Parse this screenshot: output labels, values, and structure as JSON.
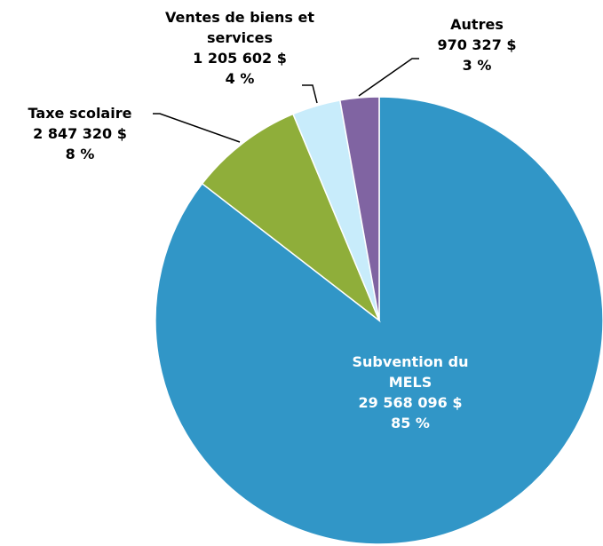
{
  "chart_data": {
    "type": "pie",
    "categories": [
      "Subvention du MELS",
      "Taxe scolaire",
      "Ventes de biens et services",
      "Autres"
    ],
    "values": [
      29568096,
      2847320,
      1205602,
      970327
    ],
    "value_labels": [
      "29 568 096 $",
      "2 847 320 $",
      "1 205 602 $",
      "970 327 $"
    ],
    "percents": [
      85,
      8,
      4,
      3
    ],
    "percent_labels": [
      "85 %",
      "8 %",
      "4 %",
      "3 %"
    ],
    "colors": [
      "#3196c7",
      "#8fae3a",
      "#c8ecfb",
      "#8064a2"
    ]
  }
}
